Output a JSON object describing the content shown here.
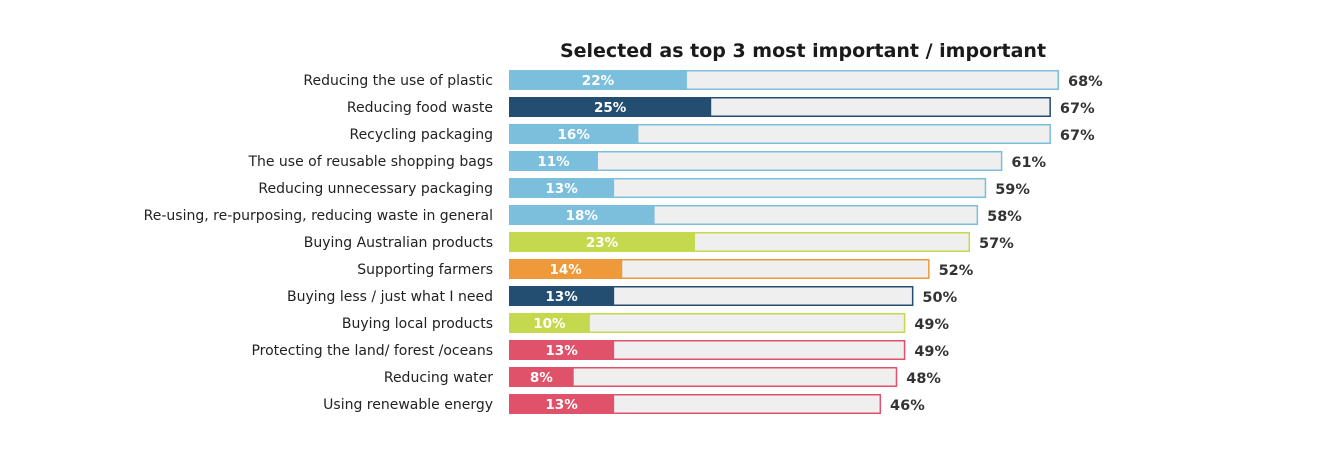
{
  "chart_data": {
    "type": "bar",
    "title": "Selected as top 3 most important / important",
    "value_format": "{v}%",
    "categories": [
      "Reducing the use of plastic",
      "Reducing food waste",
      "Recycling packaging",
      "The use of reusable shopping bags",
      "Reducing unnecessary packaging",
      "Re-using, re-purposing, reducing waste in general",
      "Buying Australian products",
      "Supporting farmers",
      "Buying less / just what I need",
      "Buying local products",
      "Protecting the land/ forest /oceans",
      "Reducing water",
      "Using renewable energy"
    ],
    "series": [
      {
        "values": [
          22,
          25,
          16,
          11,
          13,
          18,
          23,
          14,
          13,
          10,
          13,
          8,
          13
        ]
      },
      {
        "values": [
          68,
          67,
          67,
          61,
          59,
          58,
          57,
          52,
          50,
          49,
          49,
          48,
          46
        ]
      }
    ],
    "bar_colors": [
      "#7bbfdd",
      "#244d72",
      "#7bbfdd",
      "#7bbfdd",
      "#7bbfdd",
      "#7bbfdd",
      "#c5d94e",
      "#ee9a3a",
      "#244d72",
      "#c5d94e",
      "#e0526a",
      "#e0526a",
      "#e0526a"
    ],
    "background_bar_color": "#efefef",
    "xlim": [
      0,
      68
    ],
    "grid": false,
    "legend": "none"
  }
}
